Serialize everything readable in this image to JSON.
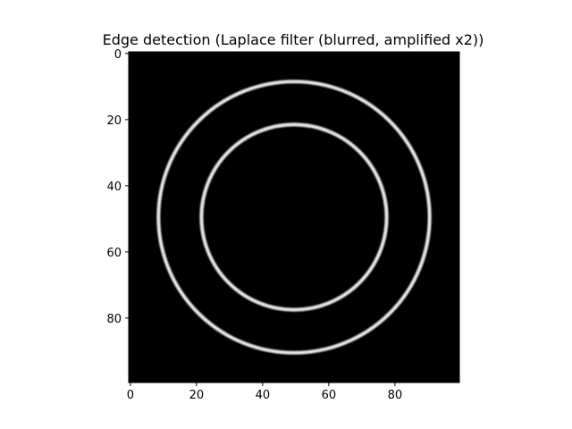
{
  "chart_data": {
    "type": "heatmap",
    "title": "Edge detection (Laplace filter (blurred, amplified x2))",
    "xlabel": "",
    "ylabel": "",
    "image_size": [
      100,
      100
    ],
    "xlim": [
      0,
      100
    ],
    "ylim": [
      100,
      0
    ],
    "x_ticks": [
      0,
      20,
      40,
      60,
      80
    ],
    "y_ticks": [
      0,
      20,
      40,
      60,
      80
    ],
    "colormap": "gray",
    "background_color": "#000000",
    "grid": false,
    "rings": [
      {
        "center_x": 50,
        "center_y": 50,
        "radius": 41,
        "intensity": 0.85
      },
      {
        "center_x": 50,
        "center_y": 50,
        "radius": 28,
        "intensity": 0.85
      }
    ]
  }
}
